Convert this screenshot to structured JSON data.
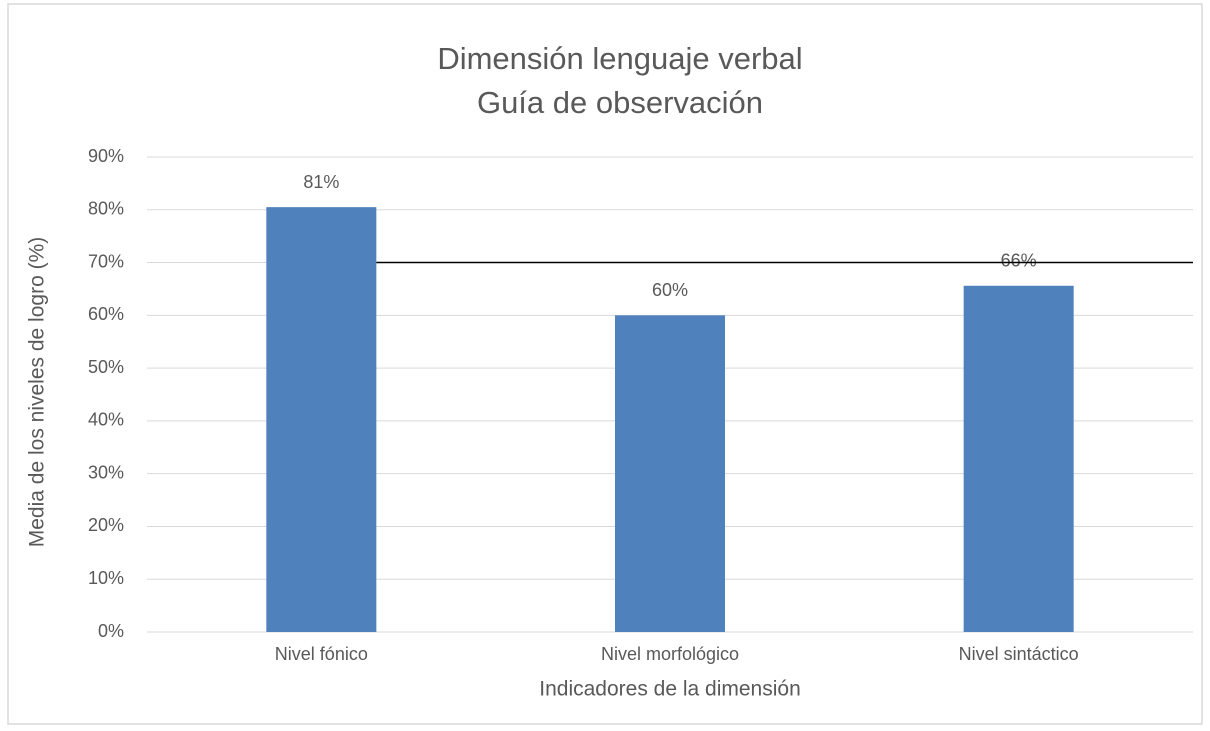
{
  "chart_data": {
    "type": "bar",
    "title": [
      "Dimensión lenguaje verbal",
      "Guía de observación"
    ],
    "x_label": "Indicadores de la dimensión",
    "y_label": "Media de los niveles de logro (%)",
    "categories": [
      "Nivel fónico",
      "Nivel morfológico",
      "Nivel sintáctico"
    ],
    "values": [
      80.5,
      60,
      65.6
    ],
    "value_labels": [
      "81%",
      "60%",
      "66%"
    ],
    "color": "#4f81bd",
    "ylim": [
      0,
      90
    ],
    "yticks": [
      {
        "value": 0,
        "label": "0%"
      },
      {
        "value": 10,
        "label": "10%"
      },
      {
        "value": 20,
        "label": "20%"
      },
      {
        "value": 30,
        "label": "30%"
      },
      {
        "value": 40,
        "label": "40%"
      },
      {
        "value": 50,
        "label": "50%"
      },
      {
        "value": 60,
        "label": "60%"
      },
      {
        "value": 70,
        "label": "70%"
      },
      {
        "value": 80,
        "label": "80%"
      },
      {
        "value": 90,
        "label": "90%"
      }
    ],
    "grid": true,
    "reference_line": {
      "value": 70,
      "color": "#000000"
    }
  }
}
